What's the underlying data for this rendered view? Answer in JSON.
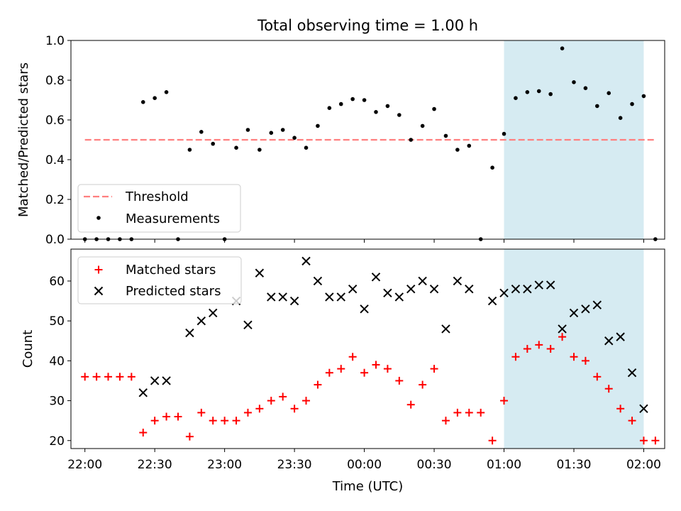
{
  "chart_data": [
    {
      "type": "scatter",
      "title": "Total observing time = 1.00 h",
      "xlabel": "",
      "ylabel": "Matched/Predicted stars",
      "ylim": [
        0,
        1.0
      ],
      "yticks": [
        0.0,
        0.2,
        0.4,
        0.6,
        0.8,
        1.0
      ],
      "ytick_labels": [
        "0.0",
        "0.2",
        "0.4",
        "0.6",
        "0.8",
        "1.0"
      ],
      "legend": {
        "placement": "lower-left",
        "entries": [
          "Threshold",
          "Measurements"
        ]
      },
      "threshold": {
        "name": "Threshold",
        "value": 0.5,
        "x_start": "22:00",
        "x_end": "02:05",
        "color": "#ff7f7f",
        "style": "dashed"
      },
      "highlight": {
        "x_start": "01:00",
        "x_end": "02:00",
        "color": "#add8e6"
      },
      "series": [
        {
          "name": "Measurements",
          "color": "#000000",
          "marker": "dot",
          "x": [
            "22:00",
            "22:05",
            "22:10",
            "22:15",
            "22:20",
            "22:25",
            "22:30",
            "22:35",
            "22:40",
            "22:45",
            "22:50",
            "22:55",
            "23:00",
            "23:05",
            "23:10",
            "23:15",
            "23:20",
            "23:25",
            "23:30",
            "23:35",
            "23:40",
            "23:45",
            "23:50",
            "23:55",
            "00:00",
            "00:05",
            "00:10",
            "00:15",
            "00:20",
            "00:25",
            "00:30",
            "00:35",
            "00:40",
            "00:45",
            "00:50",
            "00:55",
            "01:00",
            "01:05",
            "01:10",
            "01:15",
            "01:20",
            "01:25",
            "01:30",
            "01:35",
            "01:40",
            "01:45",
            "01:50",
            "01:55",
            "02:00",
            "02:05"
          ],
          "y": [
            0.0,
            0.0,
            0.0,
            0.0,
            0.0,
            0.69,
            0.71,
            0.74,
            0.0,
            0.45,
            0.54,
            0.48,
            0.0,
            0.46,
            0.55,
            0.45,
            0.535,
            0.55,
            0.51,
            0.46,
            0.57,
            0.66,
            0.68,
            0.705,
            0.7,
            0.64,
            0.67,
            0.625,
            0.5,
            0.57,
            0.655,
            0.52,
            0.45,
            0.47,
            0.0,
            0.36,
            0.53,
            0.71,
            0.74,
            0.745,
            0.73,
            0.96,
            0.79,
            0.76,
            0.67,
            0.735,
            0.61,
            0.68,
            0.72,
            0.0
          ]
        }
      ]
    },
    {
      "type": "scatter",
      "title": "",
      "xlabel": "Time (UTC)",
      "ylabel": "Count",
      "ylim": [
        18,
        68
      ],
      "yticks": [
        20,
        30,
        40,
        50,
        60
      ],
      "ytick_labels": [
        "20",
        "30",
        "40",
        "50",
        "60"
      ],
      "xticks": [
        "22:00",
        "22:30",
        "23:00",
        "23:30",
        "00:00",
        "00:30",
        "01:00",
        "01:30",
        "02:00"
      ],
      "xlim": [
        "21:54",
        "02:09"
      ],
      "legend": {
        "placement": "top-left",
        "entries": [
          "Matched stars",
          "Predicted stars"
        ]
      },
      "highlight": {
        "x_start": "01:00",
        "x_end": "02:00",
        "color": "#add8e6"
      },
      "series": [
        {
          "name": "Matched stars",
          "color": "#ff0000",
          "marker": "plus",
          "x": [
            "22:00",
            "22:05",
            "22:10",
            "22:15",
            "22:20",
            "22:25",
            "22:30",
            "22:35",
            "22:40",
            "22:45",
            "22:50",
            "22:55",
            "23:00",
            "23:05",
            "23:10",
            "23:15",
            "23:20",
            "23:25",
            "23:30",
            "23:35",
            "23:40",
            "23:45",
            "23:50",
            "23:55",
            "00:00",
            "00:05",
            "00:10",
            "00:15",
            "00:20",
            "00:25",
            "00:30",
            "00:35",
            "00:40",
            "00:45",
            "00:50",
            "00:55",
            "01:00",
            "01:05",
            "01:10",
            "01:15",
            "01:20",
            "01:25",
            "01:30",
            "01:35",
            "01:40",
            "01:45",
            "01:50",
            "01:55",
            "02:00",
            "02:05"
          ],
          "y": [
            36,
            36,
            36,
            36,
            36,
            22,
            25,
            26,
            26,
            21,
            27,
            25,
            25,
            25,
            27,
            28,
            30,
            31,
            28,
            30,
            34,
            37,
            38,
            41,
            37,
            39,
            38,
            35,
            29,
            34,
            38,
            25,
            27,
            27,
            27,
            20,
            30,
            41,
            43,
            44,
            43,
            46,
            41,
            40,
            36,
            33,
            28,
            25,
            20,
            20
          ]
        },
        {
          "name": "Predicted stars",
          "color": "#000000",
          "marker": "x",
          "x": [
            "22:25",
            "22:30",
            "22:35",
            "22:45",
            "22:50",
            "22:55",
            "23:05",
            "23:10",
            "23:15",
            "23:20",
            "23:25",
            "23:30",
            "23:35",
            "23:40",
            "23:45",
            "23:50",
            "23:55",
            "00:00",
            "00:05",
            "00:10",
            "00:15",
            "00:20",
            "00:25",
            "00:30",
            "00:35",
            "00:40",
            "00:45",
            "00:55",
            "01:00",
            "01:05",
            "01:10",
            "01:15",
            "01:20",
            "01:25",
            "01:30",
            "01:35",
            "01:40",
            "01:45",
            "01:50",
            "01:55",
            "02:00"
          ],
          "y": [
            32,
            35,
            35,
            47,
            50,
            52,
            55,
            49,
            62,
            56,
            56,
            55,
            65,
            60,
            56,
            56,
            58,
            53,
            61,
            57,
            56,
            58,
            60,
            58,
            48,
            60,
            58,
            55,
            57,
            58,
            58,
            59,
            59,
            48,
            52,
            53,
            54,
            45,
            46,
            37,
            28
          ]
        }
      ]
    }
  ]
}
